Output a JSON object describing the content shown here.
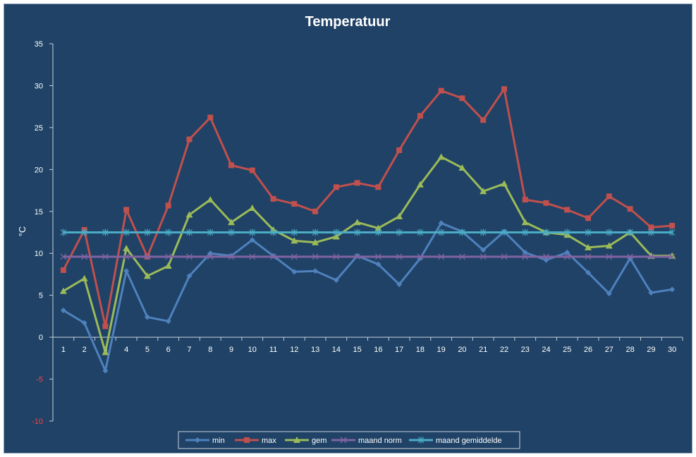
{
  "chart_data": {
    "type": "line",
    "title": "Temperatuur",
    "xlabel": "",
    "ylabel": "°C",
    "ylim": [
      -10,
      35
    ],
    "y_ticks": [
      35,
      30,
      25,
      20,
      15,
      10,
      5,
      0,
      -5,
      -10
    ],
    "categories": [
      "1",
      "2",
      "3",
      "4",
      "5",
      "6",
      "7",
      "8",
      "9",
      "10",
      "11",
      "12",
      "13",
      "14",
      "15",
      "16",
      "17",
      "18",
      "19",
      "20",
      "21",
      "22",
      "23",
      "24",
      "25",
      "26",
      "27",
      "28",
      "29",
      "30"
    ],
    "grid": false,
    "legend_position": "bottom",
    "series": [
      {
        "name": "min",
        "color": "#4f81bd",
        "marker": "diamond",
        "values": [
          3.2,
          1.7,
          -4.0,
          7.9,
          2.4,
          1.9,
          7.3,
          10.0,
          9.7,
          11.6,
          9.7,
          7.8,
          7.9,
          6.8,
          9.7,
          8.7,
          6.3,
          9.4,
          13.6,
          12.6,
          10.4,
          12.6,
          10.1,
          9.2,
          10.1,
          7.7,
          5.2,
          9.4,
          5.3,
          5.7
        ]
      },
      {
        "name": "max",
        "color": "#c0504d",
        "marker": "square",
        "values": [
          8.0,
          12.8,
          1.3,
          15.2,
          9.6,
          15.7,
          23.6,
          26.2,
          20.5,
          19.9,
          16.5,
          15.9,
          15.0,
          17.9,
          18.4,
          17.9,
          22.3,
          26.4,
          29.4,
          28.5,
          25.9,
          29.6,
          16.4,
          16.0,
          15.2,
          14.2,
          16.8,
          15.3,
          13.1,
          13.3
        ]
      },
      {
        "name": "gem",
        "color": "#9bbb59",
        "marker": "triangle",
        "values": [
          5.5,
          7.0,
          -1.8,
          10.6,
          7.3,
          8.5,
          14.6,
          16.4,
          13.7,
          15.4,
          12.8,
          11.5,
          11.3,
          12.0,
          13.7,
          13.0,
          14.4,
          18.2,
          21.5,
          20.2,
          17.4,
          18.3,
          13.7,
          12.5,
          12.2,
          10.7,
          10.9,
          12.5,
          9.7,
          9.7
        ]
      },
      {
        "name": "maand norm",
        "color": "#8064a2",
        "marker": "x",
        "values": [
          9.6,
          9.6,
          9.6,
          9.6,
          9.6,
          9.6,
          9.6,
          9.6,
          9.6,
          9.6,
          9.6,
          9.6,
          9.6,
          9.6,
          9.6,
          9.6,
          9.6,
          9.6,
          9.6,
          9.6,
          9.6,
          9.6,
          9.6,
          9.6,
          9.6,
          9.6,
          9.6,
          9.6,
          9.6,
          9.6
        ]
      },
      {
        "name": "maand gemiddelde",
        "color": "#4bacc6",
        "marker": "star",
        "values": [
          12.5,
          12.5,
          12.5,
          12.5,
          12.5,
          12.5,
          12.5,
          12.5,
          12.5,
          12.5,
          12.5,
          12.5,
          12.5,
          12.5,
          12.5,
          12.5,
          12.5,
          12.5,
          12.5,
          12.5,
          12.5,
          12.5,
          12.5,
          12.5,
          12.5,
          12.5,
          12.5,
          12.5,
          12.5,
          12.5
        ]
      }
    ]
  }
}
